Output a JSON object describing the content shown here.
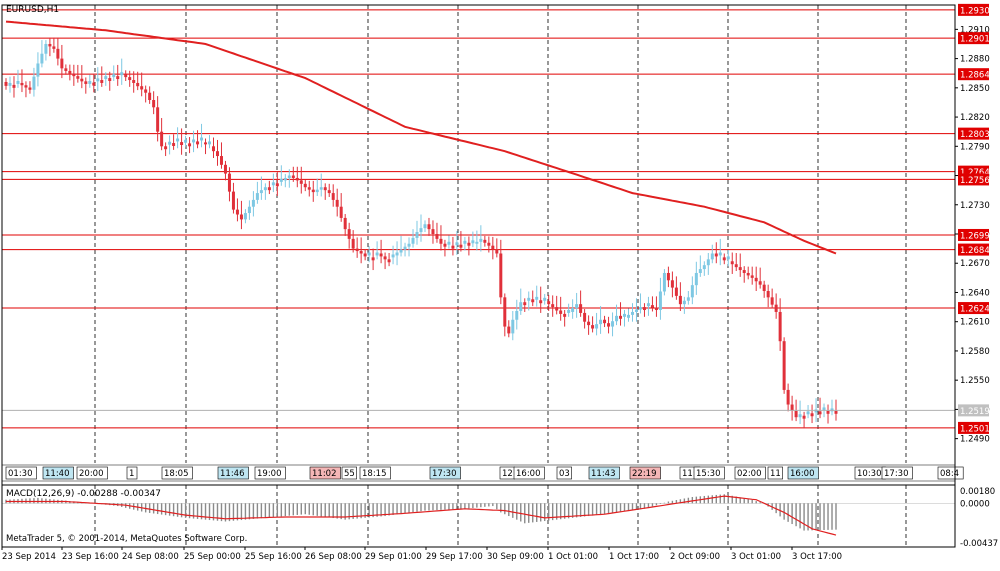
{
  "window": {
    "symbol_label": "EURUSD,H1",
    "copyright": "MetaTrader 5, © 2001-2014, MetaQuotes Software Corp."
  },
  "colors": {
    "bull": "#7ec8e3",
    "bear": "#e0303a",
    "level": "#e00000",
    "ma": "#e02020",
    "macd_hist": "#8a8a8a",
    "macd_signal": "#e02020",
    "grid": "#000000",
    "axis_text": "#000000",
    "price_tag_bg": "#e00000",
    "price_tag_text": "#ffffff",
    "current_tag_bg": "#c0c0c0"
  },
  "chart_data": [
    {
      "type": "candlestick",
      "title": "EURUSD,H1",
      "ylim": [
        1.2465,
        1.2935
      ],
      "y_ticks": [
        1.291,
        1.288,
        1.285,
        1.282,
        1.279,
        1.276,
        1.273,
        1.27,
        1.267,
        1.264,
        1.261,
        1.258,
        1.255,
        1.252,
        1.249
      ],
      "x_labels": [
        "23 Sep 2014",
        "23 Sep 16:00",
        "24 Sep 08:00",
        "25 Sep 00:00",
        "25 Sep 16:00",
        "26 Sep 08:00",
        "29 Sep 01:00",
        "29 Sep 17:00",
        "30 Sep 09:00",
        "1 Oct 01:00",
        "1 Oct 17:00",
        "2 Oct 09:00",
        "3 Oct 01:00",
        "3 Oct 17:00"
      ],
      "horizontal_levels": [
        1.293,
        1.2901,
        1.2864,
        1.2803,
        1.2764,
        1.2756,
        1.2699,
        1.2684,
        1.2624,
        1.2501
      ],
      "current_price": 1.2519,
      "close_anchors": [
        [
          0,
          1.2852
        ],
        [
          3,
          1.2855
        ],
        [
          6,
          1.2848
        ],
        [
          8,
          1.2875
        ],
        [
          10,
          1.2895
        ],
        [
          12,
          1.289
        ],
        [
          14,
          1.287
        ],
        [
          17,
          1.2862
        ],
        [
          20,
          1.2854
        ],
        [
          23,
          1.2858
        ],
        [
          26,
          1.2861
        ],
        [
          29,
          1.2864
        ],
        [
          32,
          1.2855
        ],
        [
          35,
          1.2845
        ],
        [
          37,
          1.283
        ],
        [
          38,
          1.2805
        ],
        [
          39,
          1.279
        ],
        [
          42,
          1.2795
        ],
        [
          45,
          1.2793
        ],
        [
          48,
          1.2796
        ],
        [
          51,
          1.279
        ],
        [
          53,
          1.278
        ],
        [
          55,
          1.2762
        ],
        [
          57,
          1.2725
        ],
        [
          59,
          1.2715
        ],
        [
          61,
          1.2728
        ],
        [
          63,
          1.2742
        ],
        [
          65,
          1.2748
        ],
        [
          67,
          1.2752
        ],
        [
          69,
          1.2755
        ],
        [
          71,
          1.276
        ],
        [
          73,
          1.2755
        ],
        [
          75,
          1.2748
        ],
        [
          77,
          1.2743
        ],
        [
          79,
          1.2748
        ],
        [
          81,
          1.2742
        ],
        [
          83,
          1.2728
        ],
        [
          85,
          1.2705
        ],
        [
          87,
          1.2685
        ],
        [
          89,
          1.268
        ],
        [
          91,
          1.2676
        ],
        [
          93,
          1.268
        ],
        [
          95,
          1.2674
        ],
        [
          97,
          1.2678
        ],
        [
          99,
          1.2684
        ],
        [
          101,
          1.269
        ],
        [
          103,
          1.2702
        ],
        [
          105,
          1.271
        ],
        [
          107,
          1.27
        ],
        [
          109,
          1.269
        ],
        [
          111,
          1.2688
        ],
        [
          113,
          1.2689
        ],
        [
          115,
          1.2691
        ],
        [
          117,
          1.269
        ],
        [
          119,
          1.2694
        ],
        [
          121,
          1.2688
        ],
        [
          123,
          1.268
        ],
        [
          124,
          1.2635
        ],
        [
          125,
          1.2605
        ],
        [
          126,
          1.2598
        ],
        [
          127,
          1.2612
        ],
        [
          129,
          1.263
        ],
        [
          131,
          1.2633
        ],
        [
          133,
          1.2632
        ],
        [
          135,
          1.2631
        ],
        [
          137,
          1.2625
        ],
        [
          139,
          1.2618
        ],
        [
          141,
          1.262
        ],
        [
          143,
          1.2628
        ],
        [
          145,
          1.261
        ],
        [
          147,
          1.2603
        ],
        [
          149,
          1.2612
        ],
        [
          151,
          1.2605
        ],
        [
          153,
          1.2616
        ],
        [
          155,
          1.2614
        ],
        [
          157,
          1.262
        ],
        [
          159,
          1.2625
        ],
        [
          161,
          1.2627
        ],
        [
          163,
          1.2622
        ],
        [
          165,
          1.266
        ],
        [
          167,
          1.2645
        ],
        [
          169,
          1.2628
        ],
        [
          171,
          1.2635
        ],
        [
          173,
          1.266
        ],
        [
          175,
          1.2668
        ],
        [
          177,
          1.268
        ],
        [
          179,
          1.2676
        ],
        [
          181,
          1.2672
        ],
        [
          183,
          1.2666
        ],
        [
          185,
          1.266
        ],
        [
          187,
          1.2655
        ],
        [
          189,
          1.2648
        ],
        [
          191,
          1.2635
        ],
        [
          193,
          1.262
        ],
        [
          194,
          1.259
        ],
        [
          195,
          1.254
        ],
        [
          196,
          1.2525
        ],
        [
          198,
          1.2512
        ],
        [
          200,
          1.2515
        ],
        [
          202,
          1.2517
        ],
        [
          204,
          1.2519
        ],
        [
          206,
          1.2518
        ],
        [
          208,
          1.2519
        ]
      ],
      "ma_anchors": [
        [
          0,
          1.2918
        ],
        [
          25,
          1.2909
        ],
        [
          50,
          1.2895
        ],
        [
          75,
          1.286
        ],
        [
          100,
          1.281
        ],
        [
          125,
          1.2785
        ],
        [
          140,
          1.2765
        ],
        [
          157,
          1.2742
        ],
        [
          175,
          1.2728
        ],
        [
          190,
          1.2712
        ],
        [
          200,
          1.2693
        ],
        [
          208,
          1.268
        ]
      ],
      "candle_count": 209
    },
    {
      "type": "bar",
      "title": "MACD(12,26,9) -0.00288 -0.00347",
      "name": "MACD",
      "ylim": [
        -0.00437,
        0.0018
      ],
      "y_ticks": [
        "0.00180",
        "0.0000",
        "-0.00437"
      ],
      "histogram_anchors": [
        [
          0,
          0.0004
        ],
        [
          8,
          0.0006
        ],
        [
          15,
          0.0003
        ],
        [
          22,
          0.0
        ],
        [
          28,
          -0.0003
        ],
        [
          35,
          -0.001
        ],
        [
          45,
          -0.0016
        ],
        [
          55,
          -0.002
        ],
        [
          65,
          -0.0016
        ],
        [
          75,
          -0.0012
        ],
        [
          85,
          -0.0018
        ],
        [
          95,
          -0.0014
        ],
        [
          105,
          -0.0008
        ],
        [
          115,
          -0.0006
        ],
        [
          122,
          -0.0003
        ],
        [
          124,
          -0.001
        ],
        [
          130,
          -0.0022
        ],
        [
          140,
          -0.0017
        ],
        [
          150,
          -0.0012
        ],
        [
          160,
          -0.0006
        ],
        [
          166,
          0.0002
        ],
        [
          172,
          0.0007
        ],
        [
          180,
          0.001
        ],
        [
          186,
          0.0005
        ],
        [
          190,
          0.0
        ],
        [
          195,
          -0.0018
        ],
        [
          200,
          -0.003
        ],
        [
          208,
          -0.0029
        ]
      ],
      "signal_anchors": [
        [
          0,
          0.0002
        ],
        [
          15,
          0.0002
        ],
        [
          30,
          -0.0002
        ],
        [
          45,
          -0.0013
        ],
        [
          55,
          -0.0017
        ],
        [
          70,
          -0.0015
        ],
        [
          85,
          -0.0015
        ],
        [
          100,
          -0.0011
        ],
        [
          115,
          -0.0006
        ],
        [
          125,
          -0.0008
        ],
        [
          135,
          -0.0016
        ],
        [
          150,
          -0.0012
        ],
        [
          165,
          -0.0002
        ],
        [
          180,
          0.0008
        ],
        [
          188,
          0.0004
        ],
        [
          195,
          -0.001
        ],
        [
          202,
          -0.0028
        ],
        [
          208,
          -0.0035
        ]
      ]
    }
  ],
  "time_marks": {
    "labels": [
      {
        "text": "01:30",
        "hl": ""
      },
      {
        "text": "11:40",
        "hl": "blue"
      },
      {
        "text": "20:00",
        "hl": ""
      },
      {
        "text": "1",
        "hl": ""
      },
      {
        "text": "18:05",
        "hl": ""
      },
      {
        "text": "11:46",
        "hl": "blue"
      },
      {
        "text": "19:00",
        "hl": ""
      },
      {
        "text": "11:02",
        "hl": "red"
      },
      {
        "text": "55",
        "hl": ""
      },
      {
        "text": "18:15",
        "hl": ""
      },
      {
        "text": "17:30",
        "hl": "blue"
      },
      {
        "text": "12",
        "hl": ""
      },
      {
        "text": "16:00",
        "hl": ""
      },
      {
        "text": "03",
        "hl": ""
      },
      {
        "text": "11:43",
        "hl": "blue"
      },
      {
        "text": "22:19",
        "hl": "red"
      },
      {
        "text": "11:",
        "hl": ""
      },
      {
        "text": "15:30",
        "hl": ""
      },
      {
        "text": "02:00",
        "hl": ""
      },
      {
        "text": "11",
        "hl": ""
      },
      {
        "text": "16:00",
        "hl": "blue"
      },
      {
        "text": "10:30",
        "hl": ""
      },
      {
        "text": "17:30",
        "hl": ""
      },
      {
        "text": "08:4",
        "hl": ""
      }
    ]
  }
}
